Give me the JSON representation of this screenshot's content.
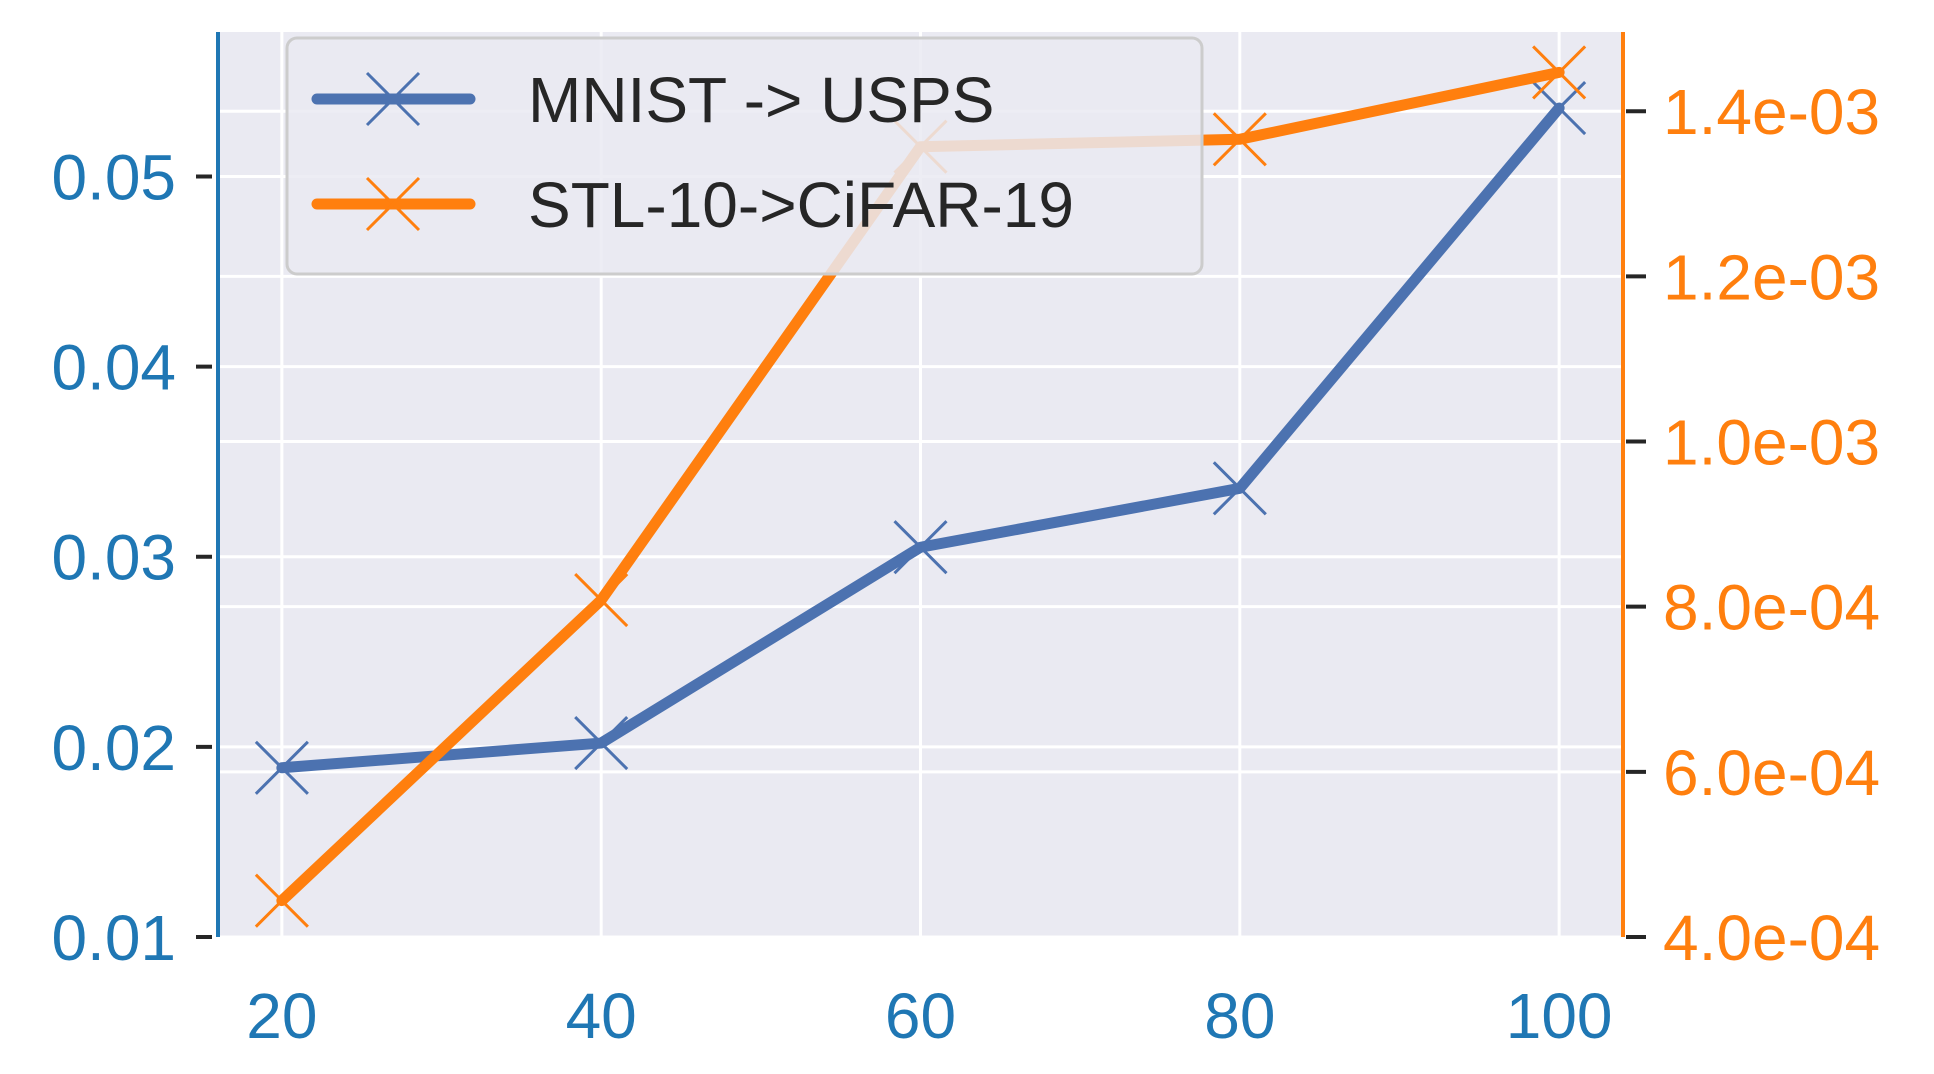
{
  "chart_data": {
    "type": "line",
    "title": "",
    "xlabel": "",
    "ylabel": "",
    "x": [
      20,
      40,
      60,
      80,
      100
    ],
    "x_ticks": [
      "20",
      "40",
      "60",
      "80",
      "100"
    ],
    "xlim": [
      16,
      104
    ],
    "grid": true,
    "legend_placement": "top-left",
    "y_left": {
      "ylim": [
        0.01,
        0.0576
      ],
      "ticks": [
        0.01,
        0.02,
        0.03,
        0.04,
        0.05
      ],
      "tick_labels": [
        "0.01",
        "0.02",
        "0.03",
        "0.04",
        "0.05"
      ],
      "color": "#1f77b4"
    },
    "y_right": {
      "ylim": [
        0.0004,
        0.0014959
      ],
      "ticks": [
        0.0004,
        0.0006,
        0.0008,
        0.001,
        0.0012,
        0.0014
      ],
      "tick_labels": [
        "4.0e-04",
        "6.0e-04",
        "8.0e-04",
        "1.0e-03",
        "1.2e-03",
        "1.4e-03"
      ],
      "color": "#ff7f0e"
    },
    "series": [
      {
        "name": "MNIST -> USPS",
        "axis": "left",
        "color": "#4c72b0",
        "values": [
          0.0189,
          0.0202,
          0.0305,
          0.0336,
          0.0536
        ]
      },
      {
        "name": "STL-10->CiFAR-19",
        "axis": "right",
        "color": "#ff7f0e",
        "values": [
          0.000444,
          0.000808,
          0.001357,
          0.001366,
          0.001447
        ]
      }
    ]
  }
}
